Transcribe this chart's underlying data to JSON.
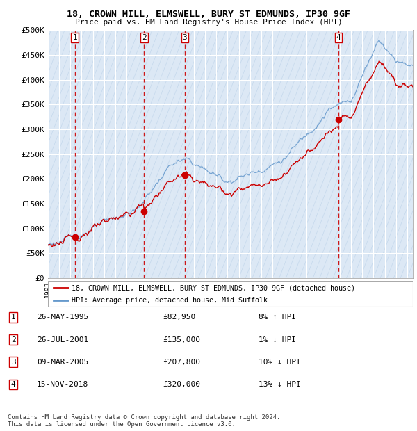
{
  "title_line1": "18, CROWN MILL, ELMSWELL, BURY ST EDMUNDS, IP30 9GF",
  "title_line2": "Price paid vs. HM Land Registry's House Price Index (HPI)",
  "ylim": [
    0,
    500000
  ],
  "yticks": [
    0,
    50000,
    100000,
    150000,
    200000,
    250000,
    300000,
    350000,
    400000,
    450000,
    500000
  ],
  "ytick_labels": [
    "£0",
    "£50K",
    "£100K",
    "£150K",
    "£200K",
    "£250K",
    "£300K",
    "£350K",
    "£400K",
    "£450K",
    "£500K"
  ],
  "xlim_start": 1993.0,
  "xlim_end": 2025.5,
  "plot_bg_color": "#dce8f5",
  "grid_color": "#ffffff",
  "hatch_line_color": "#c4d8ec",
  "sale_dates": [
    1995.4,
    2001.57,
    2005.19,
    2018.88
  ],
  "sale_prices": [
    82950,
    135000,
    207800,
    320000
  ],
  "sale_numbers": [
    "1",
    "2",
    "3",
    "4"
  ],
  "red_line_color": "#cc0000",
  "blue_line_color": "#6699cc",
  "legend_entries": [
    "18, CROWN MILL, ELMSWELL, BURY ST EDMUNDS, IP30 9GF (detached house)",
    "HPI: Average price, detached house, Mid Suffolk"
  ],
  "table_rows": [
    [
      "1",
      "26-MAY-1995",
      "£82,950",
      "8% ↑ HPI"
    ],
    [
      "2",
      "26-JUL-2001",
      "£135,000",
      "1% ↓ HPI"
    ],
    [
      "3",
      "09-MAR-2005",
      "£207,800",
      "10% ↓ HPI"
    ],
    [
      "4",
      "15-NOV-2018",
      "£320,000",
      "13% ↓ HPI"
    ]
  ],
  "footer": "Contains HM Land Registry data © Crown copyright and database right 2024.\nThis data is licensed under the Open Government Licence v3.0."
}
